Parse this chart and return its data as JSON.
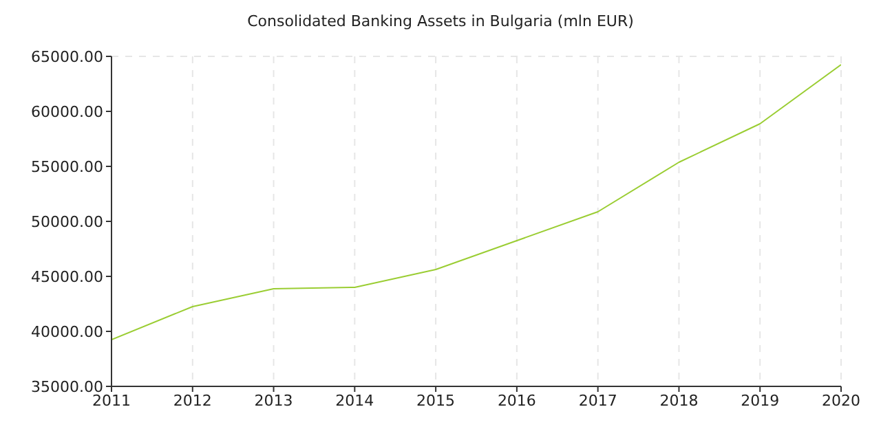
{
  "chart_data": {
    "type": "line",
    "title": "Consolidated Banking Assets in Bulgaria (mln EUR)",
    "x": [
      2011,
      2012,
      2013,
      2014,
      2015,
      2016,
      2017,
      2018,
      2019,
      2020
    ],
    "series": [
      {
        "color": "#9acd32",
        "values": [
          39250,
          42250,
          43875,
          44000,
          45625,
          48250,
          50875,
          55375,
          58875,
          64250
        ]
      }
    ],
    "xlim": [
      2011,
      2020
    ],
    "xticks": [
      2011,
      2012,
      2013,
      2014,
      2015,
      2016,
      2017,
      2018,
      2019,
      2020
    ],
    "ylim": [
      35000,
      65000
    ],
    "yticks": [
      {
        "value": 35000,
        "label": "35000.00"
      },
      {
        "value": 40000,
        "label": "40000.00"
      },
      {
        "value": 45000,
        "label": "45000.00"
      },
      {
        "value": 50000,
        "label": "50000.00"
      },
      {
        "value": 55000,
        "label": "55000.00"
      },
      {
        "value": 60000,
        "label": "60000.00"
      },
      {
        "value": 65000,
        "label": "65000.00"
      }
    ],
    "grid": true,
    "marker": "none",
    "line_style": "solid",
    "legend": false
  }
}
